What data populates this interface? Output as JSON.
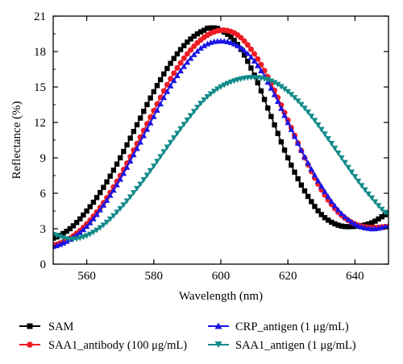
{
  "chart_data": {
    "type": "line",
    "xlabel": "Wavelength (nm)",
    "ylabel": "Reflectance (%)",
    "xlim": [
      550,
      650
    ],
    "ylim": [
      0,
      21
    ],
    "xticks": [
      560,
      580,
      600,
      620,
      640
    ],
    "yticks": [
      0,
      3,
      6,
      9,
      12,
      15,
      18,
      21
    ],
    "legend_position": "bottom",
    "series": [
      {
        "name": "SAM",
        "color": "#000000",
        "marker": "square",
        "x": [
          550,
          555,
          560,
          565,
          570,
          575,
          580,
          585,
          590,
          595,
          597,
          600,
          605,
          610,
          615,
          620,
          625,
          630,
          635,
          640,
          645,
          650
        ],
        "y": [
          2.2,
          3.0,
          4.5,
          6.5,
          9.0,
          11.8,
          14.6,
          17.0,
          18.8,
          19.8,
          20.0,
          19.8,
          18.6,
          16.0,
          12.5,
          9.0,
          6.2,
          4.2,
          3.3,
          3.2,
          3.5,
          4.3
        ]
      },
      {
        "name": "SAA1_antibody (100 μg/mL)",
        "color": "#ee1c25",
        "marker": "circle",
        "x": [
          550,
          555,
          560,
          565,
          570,
          575,
          580,
          585,
          590,
          595,
          600,
          605,
          610,
          615,
          620,
          625,
          630,
          635,
          640,
          645,
          650
        ],
        "y": [
          1.6,
          2.2,
          3.4,
          5.2,
          7.5,
          10.2,
          13.0,
          15.7,
          17.8,
          19.2,
          19.8,
          19.4,
          17.8,
          15.3,
          12.2,
          9.0,
          6.3,
          4.4,
          3.4,
          3.1,
          3.2
        ]
      },
      {
        "name": "CRP_antigen (1 μg/mL)",
        "color": "#1a14e6",
        "marker": "triangle-up",
        "x": [
          550,
          555,
          560,
          565,
          570,
          575,
          580,
          585,
          590,
          595,
          600,
          605,
          610,
          615,
          620,
          625,
          630,
          635,
          640,
          645,
          650
        ],
        "y": [
          1.5,
          2.1,
          3.2,
          5.0,
          7.2,
          9.8,
          12.5,
          15.1,
          17.1,
          18.5,
          18.9,
          18.5,
          17.2,
          14.9,
          12.0,
          9.1,
          6.6,
          4.6,
          3.4,
          3.0,
          3.2
        ]
      },
      {
        "name": "SAA1_antigen (1 μg/mL)",
        "color": "#128a8a",
        "marker": "triangle-down",
        "x": [
          550,
          555,
          560,
          565,
          570,
          575,
          580,
          585,
          590,
          595,
          600,
          605,
          610,
          615,
          620,
          625,
          630,
          635,
          640,
          645,
          650
        ],
        "y": [
          2.5,
          2.1,
          2.4,
          3.3,
          4.7,
          6.4,
          8.3,
          10.3,
          12.2,
          13.9,
          15.0,
          15.6,
          15.8,
          15.5,
          14.6,
          13.2,
          11.4,
          9.4,
          7.4,
          5.6,
          4.2
        ]
      }
    ]
  }
}
